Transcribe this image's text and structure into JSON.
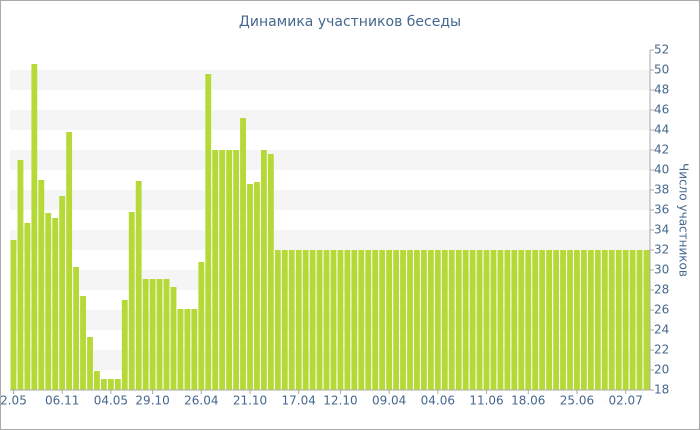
{
  "chart_data": {
    "type": "bar",
    "title": "Динамика участников беседы",
    "y_axis_label": "Число участников",
    "color": "#b5d936",
    "ylim": [
      18,
      52
    ],
    "yticks": [
      18,
      20,
      22,
      24,
      26,
      28,
      30,
      32,
      34,
      36,
      38,
      40,
      42,
      44,
      46,
      48,
      50,
      52
    ],
    "grid": true,
    "categories": [
      "2.05",
      null,
      null,
      null,
      null,
      null,
      null,
      "06.11",
      null,
      null,
      null,
      null,
      null,
      null,
      "04.05",
      null,
      null,
      null,
      null,
      null,
      "29.10",
      null,
      null,
      null,
      null,
      null,
      null,
      "26.04",
      null,
      null,
      null,
      null,
      null,
      null,
      "21.10",
      null,
      null,
      null,
      null,
      null,
      null,
      "17.04",
      null,
      null,
      null,
      null,
      null,
      "12.10",
      null,
      null,
      null,
      null,
      null,
      null,
      "09.04",
      null,
      null,
      null,
      null,
      null,
      null,
      "04.06",
      null,
      null,
      null,
      null,
      null,
      null,
      "11.06",
      null,
      null,
      null,
      null,
      null,
      "18.06",
      null,
      null,
      null,
      null,
      null,
      null,
      "25.06",
      null,
      null,
      null,
      null,
      null,
      null,
      "02.07",
      null,
      null,
      null
    ],
    "values": [
      33,
      41,
      34.7,
      50.6,
      39,
      35.7,
      35.2,
      37.4,
      43.8,
      30.3,
      27.4,
      23.3,
      19.9,
      19.1,
      19.1,
      19.1,
      27,
      35.8,
      38.9,
      29.1,
      29.1,
      29.1,
      29.1,
      28.3,
      26.1,
      26.1,
      26.1,
      30.8,
      49.6,
      42,
      42,
      42,
      42,
      45.2,
      38.6,
      38.8,
      42,
      41.6,
      32,
      32,
      32,
      32,
      32,
      32,
      32,
      32,
      32,
      32,
      32,
      32,
      32,
      32,
      32,
      32,
      32,
      32,
      32,
      32,
      32,
      32,
      32,
      32,
      32,
      32,
      32,
      32,
      32,
      32,
      32,
      32,
      32,
      32,
      32,
      32,
      32,
      32,
      32,
      32,
      32,
      32,
      32,
      32,
      32,
      32,
      32,
      32,
      32,
      32,
      32,
      32,
      32,
      32
    ]
  }
}
